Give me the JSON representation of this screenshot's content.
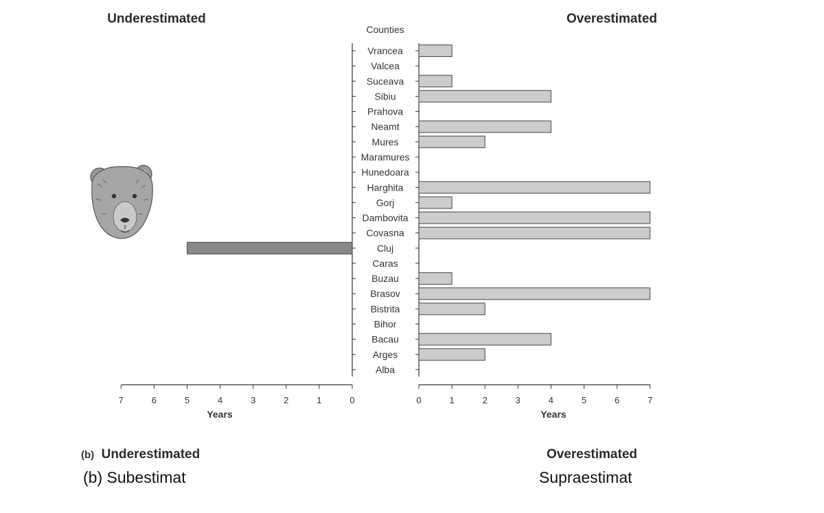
{
  "figure": {
    "header_left": "Underestimated",
    "header_right": "Overestimated",
    "counties_label": "Counties",
    "bottom_label_prefix": "(b)",
    "bottom_left_en": "Underestimated",
    "bottom_right_en": "Overestimated",
    "translation_left": "(b) Subestimat",
    "translation_right": "Supraestimat",
    "illustration": "bear-head-icon"
  },
  "chart_data": {
    "type": "bar",
    "orientation": "horizontal-diverging",
    "categories": [
      "Vrancea",
      "Valcea",
      "Suceava",
      "Sibiu",
      "Prahova",
      "Neamt",
      "Mures",
      "Maramures",
      "Hunedoara",
      "Harghita",
      "Gorj",
      "Dambovita",
      "Covasna",
      "Cluj",
      "Caras",
      "Buzau",
      "Brasov",
      "Bistrita",
      "Bihor",
      "Bacau",
      "Arges",
      "Alba"
    ],
    "series": [
      {
        "name": "Underestimated",
        "values": [
          0,
          0,
          0,
          0,
          0,
          0,
          0,
          0,
          0,
          0,
          0,
          0,
          0,
          5,
          0,
          0,
          0,
          0,
          0,
          0,
          0,
          0
        ],
        "color": "#888888"
      },
      {
        "name": "Overestimated",
        "values": [
          1,
          0,
          1,
          4,
          0,
          4,
          2,
          0,
          0,
          7,
          1,
          7,
          7,
          0,
          0,
          1,
          7,
          2,
          0,
          4,
          2,
          0
        ],
        "color": "#cccccc"
      }
    ],
    "xlabel_left": "Years",
    "xlabel_right": "Years",
    "xlim_left": [
      7,
      0
    ],
    "xlim_right": [
      0,
      7
    ],
    "ticks_left": [
      "7",
      "6",
      "5",
      "4",
      "3",
      "2",
      "1",
      "0"
    ],
    "ticks_right": [
      "0",
      "1",
      "2",
      "3",
      "4",
      "5",
      "6",
      "7"
    ],
    "ylabel": "Counties",
    "grid": false
  }
}
